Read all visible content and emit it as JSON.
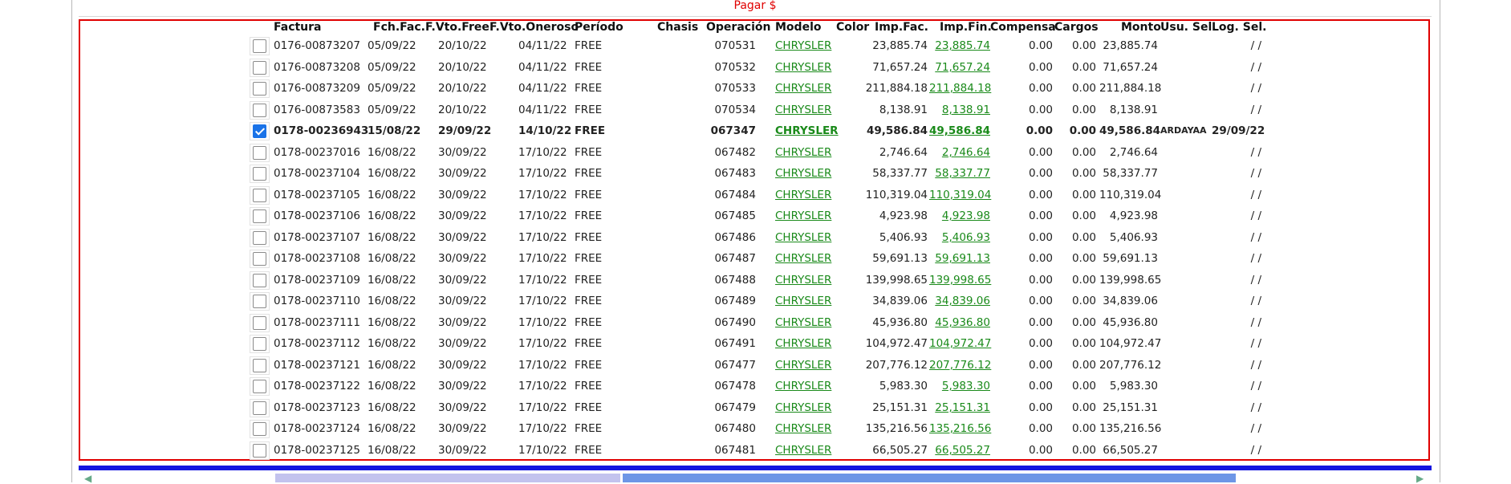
{
  "page": {
    "title": "Pagar $"
  },
  "columns": {
    "factura": "Factura",
    "fch_fac": "Fch.Fac.",
    "f_vto_free": "F.Vto.Free",
    "f_vto_oneroso": "F.Vto.Oneroso",
    "periodo": "Período",
    "chasis": "Chasis",
    "operacion": "Operación",
    "modelo": "Modelo",
    "color": "Color",
    "imp_fac": "Imp.Fac.",
    "imp_fin": "Imp.Fin.",
    "compensa": "Compensa",
    "cargos": "Cargos",
    "monto": "Monto",
    "usu_sel": "Usu. Sel.",
    "log_sel": "Log. Sel."
  },
  "rows": [
    {
      "checked": false,
      "factura": "0176-00873207",
      "fch_fac": "05/09/22",
      "f_vto_free": "20/10/22",
      "f_vto_oneroso": "04/11/22",
      "periodo": "FREE",
      "chasis": "",
      "operacion": "070531",
      "modelo": "CHRYSLER",
      "color": "",
      "imp_fac": "23,885.74",
      "imp_fin": "23,885.74",
      "compensa": "0.00",
      "cargos": "0.00",
      "monto": "23,885.74",
      "usu_sel": "",
      "log_sel": "/ /"
    },
    {
      "checked": false,
      "factura": "0176-00873208",
      "fch_fac": "05/09/22",
      "f_vto_free": "20/10/22",
      "f_vto_oneroso": "04/11/22",
      "periodo": "FREE",
      "chasis": "",
      "operacion": "070532",
      "modelo": "CHRYSLER",
      "color": "",
      "imp_fac": "71,657.24",
      "imp_fin": "71,657.24",
      "compensa": "0.00",
      "cargos": "0.00",
      "monto": "71,657.24",
      "usu_sel": "",
      "log_sel": "/ /"
    },
    {
      "checked": false,
      "factura": "0176-00873209",
      "fch_fac": "05/09/22",
      "f_vto_free": "20/10/22",
      "f_vto_oneroso": "04/11/22",
      "periodo": "FREE",
      "chasis": "",
      "operacion": "070533",
      "modelo": "CHRYSLER",
      "color": "",
      "imp_fac": "211,884.18",
      "imp_fin": "211,884.18",
      "compensa": "0.00",
      "cargos": "0.00",
      "monto": "211,884.18",
      "usu_sel": "",
      "log_sel": "/ /"
    },
    {
      "checked": false,
      "factura": "0176-00873583",
      "fch_fac": "05/09/22",
      "f_vto_free": "20/10/22",
      "f_vto_oneroso": "04/11/22",
      "periodo": "FREE",
      "chasis": "",
      "operacion": "070534",
      "modelo": "CHRYSLER",
      "color": "",
      "imp_fac": "8,138.91",
      "imp_fin": "8,138.91",
      "compensa": "0.00",
      "cargos": "0.00",
      "monto": "8,138.91",
      "usu_sel": "",
      "log_sel": "/ /"
    },
    {
      "checked": true,
      "factura": "0178-00236943",
      "fch_fac": "15/08/22",
      "f_vto_free": "29/09/22",
      "f_vto_oneroso": "14/10/22",
      "periodo": "FREE",
      "chasis": "",
      "operacion": "067347",
      "modelo": "CHRYSLER",
      "color": "",
      "imp_fac": "49,586.84",
      "imp_fin": "49,586.84",
      "compensa": "0.00",
      "cargos": "0.00",
      "monto": "49,586.84",
      "usu_sel": "ARDAYAA",
      "log_sel": "29/09/22"
    },
    {
      "checked": false,
      "factura": "0178-00237016",
      "fch_fac": "16/08/22",
      "f_vto_free": "30/09/22",
      "f_vto_oneroso": "17/10/22",
      "periodo": "FREE",
      "chasis": "",
      "operacion": "067482",
      "modelo": "CHRYSLER",
      "color": "",
      "imp_fac": "2,746.64",
      "imp_fin": "2,746.64",
      "compensa": "0.00",
      "cargos": "0.00",
      "monto": "2,746.64",
      "usu_sel": "",
      "log_sel": "/ /"
    },
    {
      "checked": false,
      "factura": "0178-00237104",
      "fch_fac": "16/08/22",
      "f_vto_free": "30/09/22",
      "f_vto_oneroso": "17/10/22",
      "periodo": "FREE",
      "chasis": "",
      "operacion": "067483",
      "modelo": "CHRYSLER",
      "color": "",
      "imp_fac": "58,337.77",
      "imp_fin": "58,337.77",
      "compensa": "0.00",
      "cargos": "0.00",
      "monto": "58,337.77",
      "usu_sel": "",
      "log_sel": "/ /"
    },
    {
      "checked": false,
      "factura": "0178-00237105",
      "fch_fac": "16/08/22",
      "f_vto_free": "30/09/22",
      "f_vto_oneroso": "17/10/22",
      "periodo": "FREE",
      "chasis": "",
      "operacion": "067484",
      "modelo": "CHRYSLER",
      "color": "",
      "imp_fac": "110,319.04",
      "imp_fin": "110,319.04",
      "compensa": "0.00",
      "cargos": "0.00",
      "monto": "110,319.04",
      "usu_sel": "",
      "log_sel": "/ /"
    },
    {
      "checked": false,
      "factura": "0178-00237106",
      "fch_fac": "16/08/22",
      "f_vto_free": "30/09/22",
      "f_vto_oneroso": "17/10/22",
      "periodo": "FREE",
      "chasis": "",
      "operacion": "067485",
      "modelo": "CHRYSLER",
      "color": "",
      "imp_fac": "4,923.98",
      "imp_fin": "4,923.98",
      "compensa": "0.00",
      "cargos": "0.00",
      "monto": "4,923.98",
      "usu_sel": "",
      "log_sel": "/ /"
    },
    {
      "checked": false,
      "factura": "0178-00237107",
      "fch_fac": "16/08/22",
      "f_vto_free": "30/09/22",
      "f_vto_oneroso": "17/10/22",
      "periodo": "FREE",
      "chasis": "",
      "operacion": "067486",
      "modelo": "CHRYSLER",
      "color": "",
      "imp_fac": "5,406.93",
      "imp_fin": "5,406.93",
      "compensa": "0.00",
      "cargos": "0.00",
      "monto": "5,406.93",
      "usu_sel": "",
      "log_sel": "/ /"
    },
    {
      "checked": false,
      "factura": "0178-00237108",
      "fch_fac": "16/08/22",
      "f_vto_free": "30/09/22",
      "f_vto_oneroso": "17/10/22",
      "periodo": "FREE",
      "chasis": "",
      "operacion": "067487",
      "modelo": "CHRYSLER",
      "color": "",
      "imp_fac": "59,691.13",
      "imp_fin": "59,691.13",
      "compensa": "0.00",
      "cargos": "0.00",
      "monto": "59,691.13",
      "usu_sel": "",
      "log_sel": "/ /"
    },
    {
      "checked": false,
      "factura": "0178-00237109",
      "fch_fac": "16/08/22",
      "f_vto_free": "30/09/22",
      "f_vto_oneroso": "17/10/22",
      "periodo": "FREE",
      "chasis": "",
      "operacion": "067488",
      "modelo": "CHRYSLER",
      "color": "",
      "imp_fac": "139,998.65",
      "imp_fin": "139,998.65",
      "compensa": "0.00",
      "cargos": "0.00",
      "monto": "139,998.65",
      "usu_sel": "",
      "log_sel": "/ /"
    },
    {
      "checked": false,
      "factura": "0178-00237110",
      "fch_fac": "16/08/22",
      "f_vto_free": "30/09/22",
      "f_vto_oneroso": "17/10/22",
      "periodo": "FREE",
      "chasis": "",
      "operacion": "067489",
      "modelo": "CHRYSLER",
      "color": "",
      "imp_fac": "34,839.06",
      "imp_fin": "34,839.06",
      "compensa": "0.00",
      "cargos": "0.00",
      "monto": "34,839.06",
      "usu_sel": "",
      "log_sel": "/ /"
    },
    {
      "checked": false,
      "factura": "0178-00237111",
      "fch_fac": "16/08/22",
      "f_vto_free": "30/09/22",
      "f_vto_oneroso": "17/10/22",
      "periodo": "FREE",
      "chasis": "",
      "operacion": "067490",
      "modelo": "CHRYSLER",
      "color": "",
      "imp_fac": "45,936.80",
      "imp_fin": "45,936.80",
      "compensa": "0.00",
      "cargos": "0.00",
      "monto": "45,936.80",
      "usu_sel": "",
      "log_sel": "/ /"
    },
    {
      "checked": false,
      "factura": "0178-00237112",
      "fch_fac": "16/08/22",
      "f_vto_free": "30/09/22",
      "f_vto_oneroso": "17/10/22",
      "periodo": "FREE",
      "chasis": "",
      "operacion": "067491",
      "modelo": "CHRYSLER",
      "color": "",
      "imp_fac": "104,972.47",
      "imp_fin": "104,972.47",
      "compensa": "0.00",
      "cargos": "0.00",
      "monto": "104,972.47",
      "usu_sel": "",
      "log_sel": "/ /"
    },
    {
      "checked": false,
      "factura": "0178-00237121",
      "fch_fac": "16/08/22",
      "f_vto_free": "30/09/22",
      "f_vto_oneroso": "17/10/22",
      "periodo": "FREE",
      "chasis": "",
      "operacion": "067477",
      "modelo": "CHRYSLER",
      "color": "",
      "imp_fac": "207,776.12",
      "imp_fin": "207,776.12",
      "compensa": "0.00",
      "cargos": "0.00",
      "monto": "207,776.12",
      "usu_sel": "",
      "log_sel": "/ /"
    },
    {
      "checked": false,
      "factura": "0178-00237122",
      "fch_fac": "16/08/22",
      "f_vto_free": "30/09/22",
      "f_vto_oneroso": "17/10/22",
      "periodo": "FREE",
      "chasis": "",
      "operacion": "067478",
      "modelo": "CHRYSLER",
      "color": "",
      "imp_fac": "5,983.30",
      "imp_fin": "5,983.30",
      "compensa": "0.00",
      "cargos": "0.00",
      "monto": "5,983.30",
      "usu_sel": "",
      "log_sel": "/ /"
    },
    {
      "checked": false,
      "factura": "0178-00237123",
      "fch_fac": "16/08/22",
      "f_vto_free": "30/09/22",
      "f_vto_oneroso": "17/10/22",
      "periodo": "FREE",
      "chasis": "",
      "operacion": "067479",
      "modelo": "CHRYSLER",
      "color": "",
      "imp_fac": "25,151.31",
      "imp_fin": "25,151.31",
      "compensa": "0.00",
      "cargos": "0.00",
      "monto": "25,151.31",
      "usu_sel": "",
      "log_sel": "/ /"
    },
    {
      "checked": false,
      "factura": "0178-00237124",
      "fch_fac": "16/08/22",
      "f_vto_free": "30/09/22",
      "f_vto_oneroso": "17/10/22",
      "periodo": "FREE",
      "chasis": "",
      "operacion": "067480",
      "modelo": "CHRYSLER",
      "color": "",
      "imp_fac": "135,216.56",
      "imp_fin": "135,216.56",
      "compensa": "0.00",
      "cargos": "0.00",
      "monto": "135,216.56",
      "usu_sel": "",
      "log_sel": "/ /"
    },
    {
      "checked": false,
      "factura": "0178-00237125",
      "fch_fac": "16/08/22",
      "f_vto_free": "30/09/22",
      "f_vto_oneroso": "17/10/22",
      "periodo": "FREE",
      "chasis": "",
      "operacion": "067481",
      "modelo": "CHRYSLER",
      "color": "",
      "imp_fac": "66,505.27",
      "imp_fin": "66,505.27",
      "compensa": "0.00",
      "cargos": "0.00",
      "monto": "66,505.27",
      "usu_sel": "",
      "log_sel": "/ /"
    }
  ],
  "colors": {
    "frame": "#e00000",
    "link": "#1a8a1a",
    "accent_bar": "#1414e0",
    "checkbox_on": "#1a73e8"
  },
  "icons": {
    "nav_left": "nav-arrow-left-icon",
    "nav_right": "nav-arrow-right-icon"
  }
}
